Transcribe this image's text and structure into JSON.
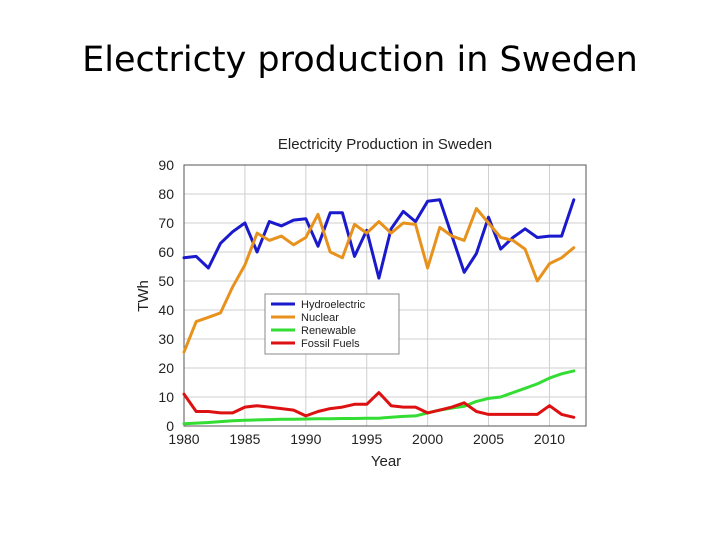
{
  "slide": {
    "title": "Electricty production in Sweden"
  },
  "chart_data": {
    "type": "line",
    "title": "Electricity Production in Sweden",
    "xlabel": "Year",
    "ylabel": "TWh",
    "xlim": [
      1980,
      2013
    ],
    "ylim": [
      0,
      90
    ],
    "xticks": [
      1980,
      1985,
      1990,
      1995,
      2000,
      2005,
      2010
    ],
    "yticks": [
      0,
      10,
      20,
      30,
      40,
      50,
      60,
      70,
      80,
      90
    ],
    "grid": true,
    "legend_position": "center-left",
    "x": [
      1980,
      1981,
      1982,
      1983,
      1984,
      1985,
      1986,
      1987,
      1988,
      1989,
      1990,
      1991,
      1992,
      1993,
      1994,
      1995,
      1996,
      1997,
      1998,
      1999,
      2000,
      2001,
      2002,
      2003,
      2004,
      2005,
      2006,
      2007,
      2008,
      2009,
      2010,
      2011,
      2012
    ],
    "series": [
      {
        "name": "Hydroelectric",
        "color": "#1a1acc",
        "values": [
          58,
          58.5,
          54.5,
          63,
          67,
          70,
          60,
          70.5,
          69,
          71,
          71.5,
          62,
          73.5,
          73.5,
          58.5,
          67.5,
          51,
          68,
          74,
          70.5,
          77.5,
          78,
          65.5,
          53,
          59.5,
          72,
          61,
          65,
          68,
          65,
          65.5,
          65.5,
          78
        ]
      },
      {
        "name": "Nuclear",
        "color": "#e8921e",
        "values": [
          25.5,
          36,
          37.5,
          39,
          48,
          55.5,
          66.5,
          64,
          65.5,
          62.5,
          65,
          73,
          60,
          58,
          69.5,
          66.5,
          70.5,
          66.5,
          70,
          69.5,
          54.5,
          68.5,
          65.5,
          64,
          75,
          70,
          65,
          64,
          61,
          50,
          56,
          58,
          61.5
        ]
      },
      {
        "name": "Renewable",
        "color": "#33dd33",
        "values": [
          0.8,
          1,
          1.2,
          1.5,
          1.8,
          2,
          2.1,
          2.2,
          2.3,
          2.3,
          2.4,
          2.5,
          2.5,
          2.6,
          2.6,
          2.7,
          2.7,
          3,
          3.3,
          3.5,
          4.5,
          5.5,
          6.2,
          6.8,
          8.5,
          9.5,
          10,
          11.5,
          13,
          14.5,
          16.5,
          18,
          19
        ]
      },
      {
        "name": "Fossil Fuels",
        "color": "#dd1111",
        "values": [
          11,
          5,
          5,
          4.5,
          4.5,
          6.5,
          7,
          6.5,
          6,
          5.5,
          3.5,
          5,
          6,
          6.5,
          7.5,
          7.5,
          11.5,
          7,
          6.5,
          6.5,
          4.5,
          5.5,
          6.5,
          8,
          5,
          4,
          4,
          4,
          4,
          4,
          7,
          4,
          3
        ]
      }
    ]
  }
}
